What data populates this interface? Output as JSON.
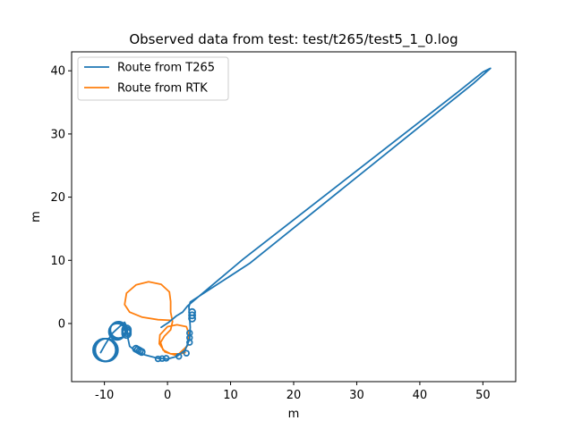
{
  "chart_data": {
    "type": "line",
    "title": "Observed data from test: test/t265/test5_1_0.log",
    "xlabel": "m",
    "ylabel": "m",
    "xlim": [
      -15.2,
      55.2
    ],
    "ylim": [
      -9.2,
      43.0
    ],
    "xticks": [
      -10,
      0,
      10,
      20,
      30,
      40,
      50
    ],
    "yticks": [
      0,
      10,
      20,
      30,
      40
    ],
    "grid": false,
    "legend_position": "top-left",
    "series": [
      {
        "name": "Route from T265",
        "color": "#1f77b4",
        "loops": [
          {
            "center": [
              -10.0,
              -4.2
            ],
            "radius": 1.8,
            "count": 6,
            "shift": [
              0.35,
              0.0
            ]
          },
          {
            "center": [
              -8.0,
              -1.3
            ],
            "radius": 1.3,
            "count": 6,
            "shift": [
              0.25,
              0.3
            ]
          },
          {
            "center": [
              -6.5,
              -1.0
            ],
            "radius": 0.7,
            "count": 3,
            "shift": [
              0.0,
              -0.6
            ]
          },
          {
            "center": [
              -5.0,
              -4.0
            ],
            "radius": 0.5,
            "count": 4,
            "shift": [
              0.9,
              -0.5
            ]
          },
          {
            "center": [
              -1.5,
              -5.6
            ],
            "radius": 0.4,
            "count": 3,
            "shift": [
              1.3,
              0.1
            ]
          },
          {
            "center": [
              1.8,
              -5.2
            ],
            "radius": 0.4,
            "count": 2,
            "shift": [
              1.2,
              0.5
            ]
          },
          {
            "center": [
              3.5,
              -3.0
            ],
            "radius": 0.4,
            "count": 3,
            "shift": [
              0.0,
              1.5
            ]
          },
          {
            "center": [
              3.9,
              1.8
            ],
            "radius": 0.5,
            "count": 3,
            "shift": [
              0.0,
              -1.0
            ]
          }
        ],
        "path": [
          [
            -10.6,
            -4.6
          ],
          [
            -9.8,
            -3.2
          ],
          [
            -8.8,
            -1.6
          ],
          [
            -7.6,
            -0.5
          ],
          [
            -6.8,
            0.2
          ],
          [
            -6.4,
            -0.6
          ],
          [
            -6.3,
            -2.2
          ],
          [
            -6.0,
            -3.6
          ],
          [
            -5.0,
            -4.4
          ],
          [
            -3.5,
            -5.0
          ],
          [
            -1.6,
            -5.5
          ],
          [
            0.0,
            -5.6
          ],
          [
            1.5,
            -5.2
          ],
          [
            2.8,
            -4.2
          ],
          [
            3.5,
            -2.5
          ],
          [
            3.6,
            -0.6
          ],
          [
            3.5,
            1.2
          ],
          [
            3.4,
            2.6
          ],
          [
            3.6,
            3.4
          ],
          [
            13.0,
            9.5
          ],
          [
            48.5,
            38.0
          ],
          [
            51.2,
            40.4
          ],
          [
            50.0,
            39.8
          ],
          [
            46.0,
            36.6
          ],
          [
            12.0,
            10.2
          ],
          [
            3.2,
            2.8
          ],
          [
            2.4,
            1.8
          ],
          [
            1.4,
            1.2
          ],
          [
            0.2,
            0.2
          ],
          [
            -1.0,
            -0.6
          ]
        ]
      },
      {
        "name": "Route from RTK",
        "color": "#ff7f0e",
        "path": [
          [
            0.5,
            0.5
          ],
          [
            -1.5,
            0.6
          ],
          [
            -4.0,
            1.0
          ],
          [
            -6.0,
            1.8
          ],
          [
            -6.8,
            3.0
          ],
          [
            -6.5,
            4.8
          ],
          [
            -5.0,
            6.1
          ],
          [
            -3.0,
            6.6
          ],
          [
            -1.0,
            6.2
          ],
          [
            0.3,
            5.0
          ],
          [
            0.5,
            3.5
          ],
          [
            0.5,
            1.8
          ],
          [
            0.8,
            0.3
          ],
          [
            0.5,
            -1.0
          ],
          [
            -0.5,
            -2.0
          ],
          [
            -1.1,
            -3.0
          ],
          [
            -0.7,
            -4.2
          ],
          [
            0.5,
            -4.8
          ],
          [
            1.8,
            -4.8
          ],
          [
            3.2,
            -3.5
          ],
          [
            3.4,
            -1.6
          ],
          [
            3.0,
            -0.5
          ],
          [
            1.5,
            -0.2
          ],
          [
            0.0,
            -0.5
          ],
          [
            -1.2,
            -1.8
          ],
          [
            -1.3,
            -3.2
          ],
          [
            -0.4,
            -4.5
          ],
          [
            1.2,
            -5.0
          ],
          [
            2.8,
            -4.6
          ]
        ]
      }
    ]
  }
}
